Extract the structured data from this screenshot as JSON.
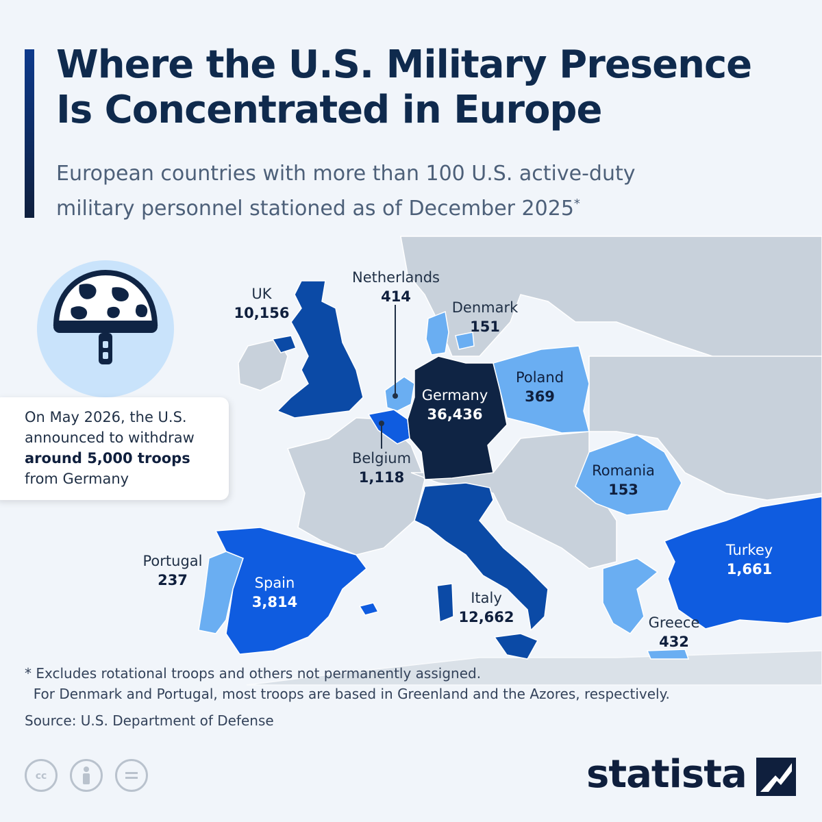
{
  "header": {
    "title_line1": "Where the U.S. Military Presence",
    "title_line2": "Is Concentrated in Europe",
    "subtitle_line1": "European countries with more than 100 U.S. active-duty",
    "subtitle_line2": "military personnel stationed as of December 2025",
    "subtitle_mark": "*"
  },
  "colors": {
    "background": "#f1f5fa",
    "land_neutral": "#c8d1db",
    "tier_light": "#6aaef2",
    "tier_mid": "#0f5ce0",
    "tier_dark": "#0b4aa6",
    "tier_max": "#0f2444",
    "accent": "#0e3a8c"
  },
  "countries": [
    {
      "name": "UK",
      "value": "10,156",
      "tier": "dark"
    },
    {
      "name": "Netherlands",
      "value": "414",
      "tier": "light"
    },
    {
      "name": "Denmark",
      "value": "151",
      "tier": "light"
    },
    {
      "name": "Germany",
      "value": "36,436",
      "tier": "max"
    },
    {
      "name": "Poland",
      "value": "369",
      "tier": "light"
    },
    {
      "name": "Belgium",
      "value": "1,118",
      "tier": "mid"
    },
    {
      "name": "Romania",
      "value": "153",
      "tier": "light"
    },
    {
      "name": "Portugal",
      "value": "237",
      "tier": "light"
    },
    {
      "name": "Spain",
      "value": "3,814",
      "tier": "mid"
    },
    {
      "name": "Italy",
      "value": "12,662",
      "tier": "dark"
    },
    {
      "name": "Turkey",
      "value": "1,661",
      "tier": "mid"
    },
    {
      "name": "Greece",
      "value": "432",
      "tier": "light"
    }
  ],
  "callout": {
    "line1": "On May 2026, the U.S.",
    "line2": "announced to withdraw",
    "line3_bold": "around 5,000 troops",
    "line4": "from Germany"
  },
  "helmet_icon": "military-helmet-icon",
  "footer": {
    "footnote_line1": "* Excludes rotational troops and others not permanently assigned.",
    "footnote_line2": "  For Denmark and Portugal, most troops are based in Greenland and the Azores, respectively.",
    "source": "Source: U.S. Department of Defense",
    "license_icons": [
      "cc-icon",
      "attribution-icon",
      "no-derivatives-icon"
    ],
    "brand": "statista"
  }
}
